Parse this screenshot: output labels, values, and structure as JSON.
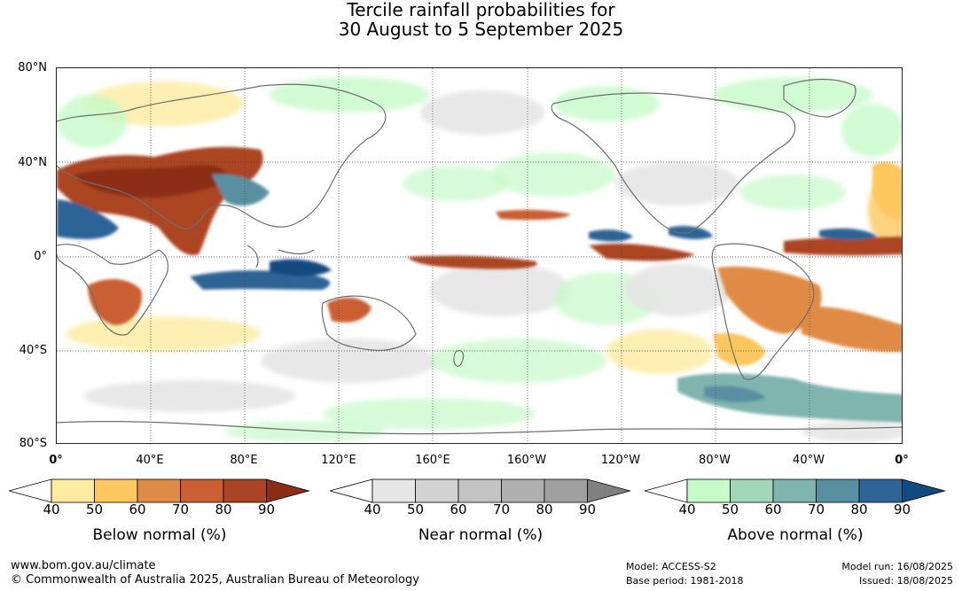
{
  "title": {
    "line1": "Tercile rainfall probabilities for",
    "line2": "30 August to 5 September 2025"
  },
  "map": {
    "lat_labels": [
      "80°N",
      "40°N",
      "0°",
      "40°S",
      "80°S"
    ],
    "lon_labels": [
      "0°",
      "40°E",
      "80°E",
      "120°E",
      "160°E",
      "160°W",
      "120°W",
      "80°W",
      "40°W",
      "0°"
    ]
  },
  "legends": [
    {
      "title": "Below normal (%)",
      "ticks": [
        "40",
        "50",
        "60",
        "70",
        "80",
        "90"
      ],
      "colors": [
        "#ffffff",
        "#fdeb9f",
        "#fdc760",
        "#e08b45",
        "#c95f32",
        "#ab4424",
        "#8c2e16"
      ]
    },
    {
      "title": "Near normal (%)",
      "ticks": [
        "40",
        "50",
        "60",
        "70",
        "80",
        "90"
      ],
      "colors": [
        "#ffffff",
        "#e6e6e6",
        "#d2d2d2",
        "#c3c3c3",
        "#b0b0b0",
        "#a0a0a0",
        "#808080"
      ]
    },
    {
      "title": "Above normal (%)",
      "ticks": [
        "40",
        "50",
        "60",
        "70",
        "80",
        "90"
      ],
      "colors": [
        "#ffffff",
        "#c6fac8",
        "#a3d6b8",
        "#80b4ae",
        "#5890a2",
        "#2f6496",
        "#144a82"
      ]
    }
  ],
  "footer": {
    "url": "www.bom.gov.au/climate",
    "copyright": "© Commonwealth of Australia 2025, Australian Bureau of Meteorology",
    "model": "Model: ACCESS-S2",
    "base_period": "Base period: 1981-2018",
    "model_run": "Model run: 16/08/2025",
    "issued": "Issued: 18/08/2025"
  }
}
